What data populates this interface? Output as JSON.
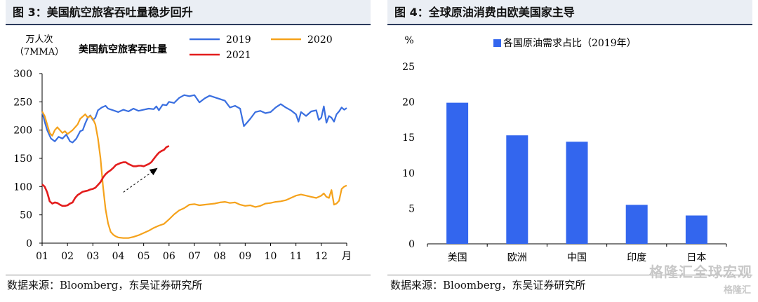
{
  "left_panel": {
    "title": "图 3：美国航空旅客吞吐量稳步回升",
    "source": "数据来源：Bloomberg，东吴证券研究所"
  },
  "right_panel": {
    "title": "图 4：全球原油消费由欧美国家主导",
    "source": "数据来源：Bloomberg，东吴证券研究所"
  },
  "watermark": "格隆汇全球宏观",
  "watermark_small": "格隆汇",
  "chart_data": [
    {
      "type": "line",
      "title": "美国航空旅客吞吐量",
      "ylabel": "万人次",
      "ylabel_sub": "（7MMA）",
      "xlabel": "月",
      "ylim": [
        0,
        300
      ],
      "yticks": [
        "0",
        "50",
        "100",
        "150",
        "200",
        "250",
        "300"
      ],
      "xlim": [
        1,
        13
      ],
      "xticks": [
        "01",
        "02",
        "03",
        "04",
        "05",
        "06",
        "07",
        "08",
        "09",
        "10",
        "11",
        "12"
      ],
      "legend": [
        "2019",
        "2020",
        "2021"
      ],
      "colors": {
        "2019": "#3a6fe0",
        "2020": "#f5a21b",
        "2021": "#e31d1d"
      },
      "series": [
        {
          "name": "2019",
          "color": "#3a6fe0",
          "x": [
            1.0,
            1.1,
            1.2,
            1.35,
            1.5,
            1.65,
            1.8,
            1.95,
            2.1,
            2.2,
            2.35,
            2.5,
            2.6,
            2.7,
            2.8,
            2.9,
            3.0,
            3.1,
            3.2,
            3.35,
            3.5,
            3.6,
            3.8,
            4.0,
            4.2,
            4.4,
            4.6,
            4.8,
            5.0,
            5.2,
            5.4,
            5.5,
            5.6,
            5.75,
            5.9,
            6.0,
            6.2,
            6.4,
            6.6,
            6.8,
            7.0,
            7.2,
            7.4,
            7.6,
            7.8,
            8.0,
            8.2,
            8.4,
            8.6,
            8.8,
            8.95,
            9.05,
            9.2,
            9.4,
            9.6,
            9.8,
            10.0,
            10.2,
            10.4,
            10.6,
            10.8,
            11.0,
            11.1,
            11.2,
            11.4,
            11.6,
            11.8,
            11.9,
            12.0,
            12.1,
            12.2,
            12.3,
            12.4,
            12.5,
            12.6,
            12.7,
            12.8,
            12.9,
            13.0
          ],
          "y": [
            233,
            215,
            200,
            185,
            180,
            188,
            185,
            192,
            180,
            178,
            185,
            198,
            200,
            212,
            222,
            226,
            218,
            222,
            235,
            240,
            243,
            238,
            235,
            232,
            236,
            233,
            238,
            234,
            236,
            238,
            237,
            242,
            235,
            245,
            244,
            250,
            248,
            257,
            262,
            260,
            262,
            249,
            256,
            261,
            258,
            255,
            252,
            240,
            243,
            238,
            207,
            212,
            220,
            232,
            234,
            230,
            232,
            240,
            246,
            240,
            235,
            228,
            215,
            232,
            225,
            233,
            235,
            218,
            222,
            242,
            213,
            225,
            222,
            215,
            228,
            233,
            240,
            236,
            239
          ]
        },
        {
          "name": "2020",
          "color": "#f5a21b",
          "x": [
            1.0,
            1.1,
            1.2,
            1.3,
            1.4,
            1.5,
            1.6,
            1.7,
            1.8,
            1.9,
            2.0,
            2.2,
            2.4,
            2.5,
            2.6,
            2.7,
            2.8,
            2.9,
            3.0,
            3.1,
            3.2,
            3.3,
            3.4,
            3.5,
            3.6,
            3.7,
            3.8,
            3.9,
            4.0,
            4.2,
            4.4,
            4.6,
            4.8,
            5.0,
            5.2,
            5.4,
            5.6,
            5.8,
            6.0,
            6.2,
            6.4,
            6.6,
            6.8,
            7.0,
            7.2,
            7.4,
            7.6,
            7.8,
            8.0,
            8.2,
            8.4,
            8.6,
            8.8,
            9.0,
            9.2,
            9.4,
            9.6,
            9.8,
            10.0,
            10.2,
            10.4,
            10.6,
            10.8,
            11.0,
            11.2,
            11.4,
            11.6,
            11.8,
            12.0,
            12.1,
            12.2,
            12.3,
            12.4,
            12.5,
            12.6,
            12.7,
            12.8,
            12.9,
            13.0
          ],
          "y": [
            233,
            225,
            210,
            195,
            190,
            200,
            205,
            200,
            195,
            198,
            193,
            200,
            210,
            220,
            224,
            228,
            222,
            225,
            220,
            210,
            185,
            150,
            100,
            60,
            35,
            20,
            15,
            12,
            10,
            9,
            9,
            11,
            14,
            18,
            22,
            27,
            31,
            34,
            42,
            51,
            58,
            62,
            68,
            69,
            67,
            68,
            69,
            70,
            72,
            73,
            71,
            72,
            68,
            66,
            67,
            64,
            66,
            70,
            71,
            73,
            74,
            76,
            80,
            84,
            86,
            84,
            82,
            80,
            84,
            88,
            82,
            80,
            94,
            68,
            70,
            75,
            96,
            100,
            102
          ]
        },
        {
          "name": "2021",
          "color": "#e31d1d",
          "x": [
            1.0,
            1.1,
            1.2,
            1.3,
            1.4,
            1.5,
            1.6,
            1.7,
            1.8,
            1.9,
            2.0,
            2.1,
            2.2,
            2.3,
            2.4,
            2.5,
            2.6,
            2.7,
            2.8,
            2.9,
            3.0,
            3.1,
            3.2,
            3.3,
            3.4,
            3.5,
            3.6,
            3.7,
            3.8,
            3.9,
            4.0,
            4.1,
            4.2,
            4.3,
            4.4,
            4.5,
            4.6,
            4.7,
            4.8,
            4.9,
            5.0,
            5.1,
            5.2,
            5.3,
            5.4,
            5.5,
            5.6,
            5.7,
            5.8,
            5.9,
            6.0
          ],
          "y": [
            104,
            100,
            90,
            74,
            70,
            72,
            71,
            68,
            66,
            66,
            67,
            70,
            72,
            80,
            85,
            88,
            91,
            92,
            93,
            95,
            96,
            98,
            103,
            108,
            116,
            122,
            126,
            129,
            133,
            138,
            140,
            142,
            143,
            143,
            140,
            138,
            136,
            136,
            137,
            137,
            136,
            138,
            140,
            143,
            149,
            155,
            160,
            163,
            165,
            170,
            172
          ]
        }
      ],
      "annotation": "arrow"
    },
    {
      "type": "bar",
      "title": "各国原油需求占比（2019年）",
      "ylabel": "%",
      "ylim": [
        0,
        25
      ],
      "yticks": [
        "0",
        "5",
        "10",
        "15",
        "20",
        "25"
      ],
      "categories": [
        "美国",
        "欧洲",
        "中国",
        "印度",
        "日本"
      ],
      "series": [
        {
          "name": "各国原油需求占比（2019年）",
          "values": [
            19.9,
            15.3,
            14.4,
            5.5,
            4.0
          ]
        }
      ],
      "colors": {
        "bar": "#3366ee"
      }
    }
  ]
}
